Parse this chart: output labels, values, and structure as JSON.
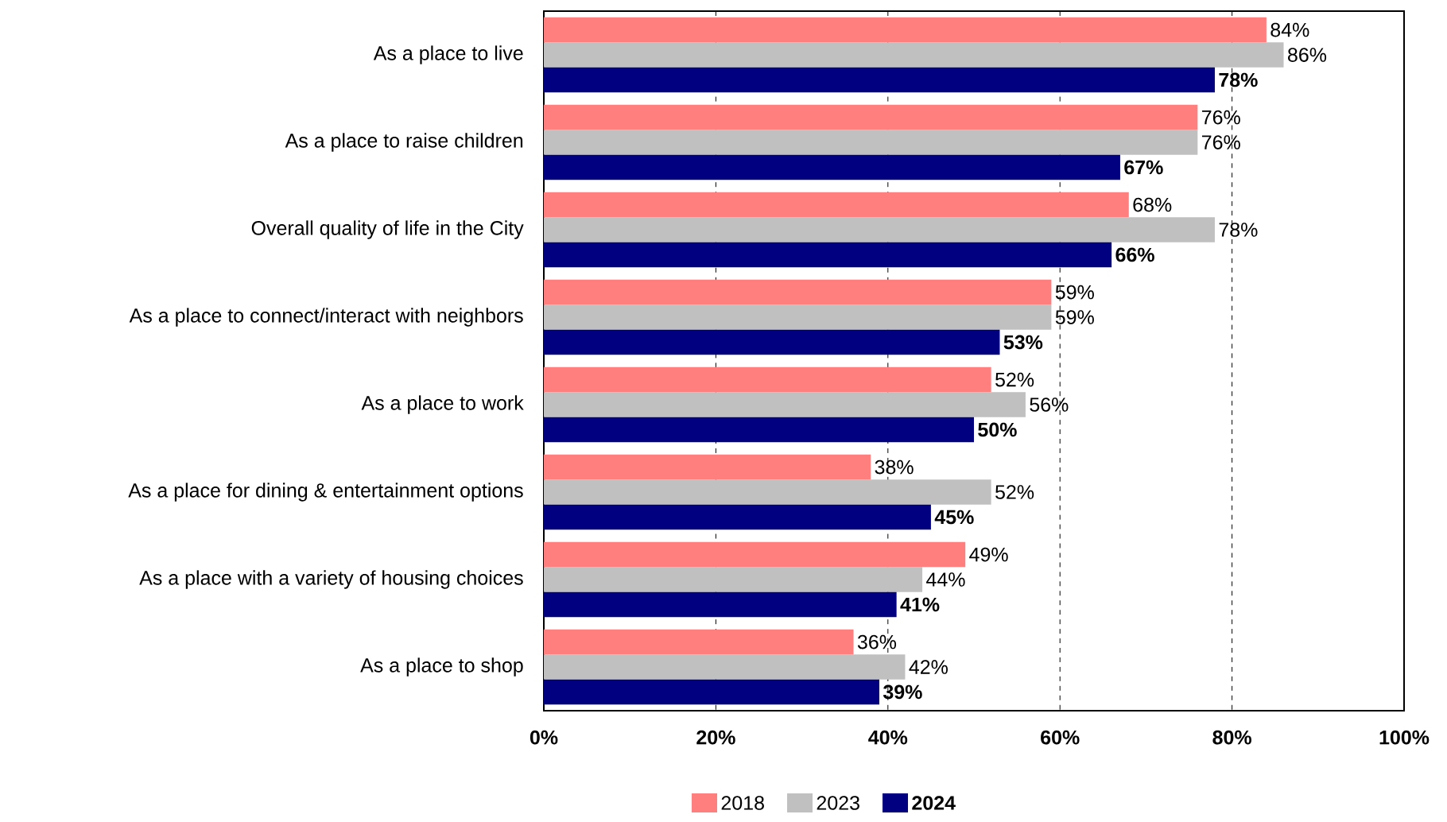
{
  "chart_data": {
    "type": "bar",
    "orientation": "horizontal",
    "categories": [
      "As a place to live",
      "As a place to raise children",
      "Overall quality of life in the City",
      "As a place to connect/interact with neighbors",
      "As a place to work",
      "As a place for dining & entertainment options",
      "As a place with a variety of housing choices",
      "As a place to shop"
    ],
    "series": [
      {
        "name": "2018",
        "color": "#ff7f7f",
        "values": [
          84,
          76,
          68,
          59,
          52,
          38,
          49,
          36
        ],
        "value_labels": [
          "84%",
          "76%",
          "68%",
          "59%",
          "52%",
          "38%",
          "49%",
          "36%"
        ]
      },
      {
        "name": "2023",
        "color": "#c0c0c0",
        "values": [
          86,
          76,
          78,
          59,
          56,
          52,
          44,
          42
        ],
        "value_labels": [
          "86%",
          "76%",
          "78%",
          "59%",
          "56%",
          "52%",
          "44%",
          "42%"
        ]
      },
      {
        "name": "**2024**",
        "color": "#000080",
        "values": [
          78,
          67,
          66,
          53,
          50,
          45,
          41,
          39
        ],
        "value_labels": [
          "**78%**",
          "**67%**",
          "**66%**",
          "**53%**",
          "**50%**",
          "**45%**",
          "**41%**",
          "**39%**"
        ]
      }
    ],
    "xlim": [
      0,
      100
    ],
    "xticks": [
      {
        "value": 0,
        "label": "**0%**"
      },
      {
        "value": 20,
        "label": "**20%**"
      },
      {
        "value": 40,
        "label": "**40%**"
      },
      {
        "value": 60,
        "label": "**60%**"
      },
      {
        "value": 80,
        "label": "**80%**"
      },
      {
        "value": 100,
        "label": "**100%**"
      }
    ],
    "grid": "x",
    "line_style": "dashed",
    "legend": "bottom"
  }
}
